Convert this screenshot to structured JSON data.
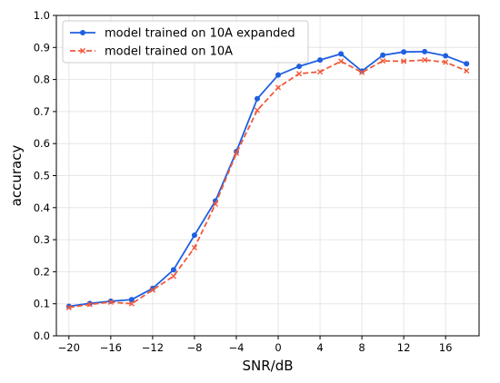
{
  "chart_data": {
    "type": "line",
    "title": "",
    "xlabel": "SNR/dB",
    "ylabel": "accuracy",
    "xlim": [
      -21.2,
      19.2
    ],
    "ylim": [
      0.0,
      1.0
    ],
    "grid": true,
    "legend_position": "top-left",
    "xticks": [
      -20,
      -16,
      -12,
      -8,
      -4,
      0,
      4,
      8,
      12,
      16
    ],
    "xtick_labels": [
      "−20",
      "−16",
      "−12",
      "−8",
      "−4",
      "0",
      "4",
      "8",
      "12",
      "16"
    ],
    "yticks": [
      0.0,
      0.1,
      0.2,
      0.3,
      0.4,
      0.5,
      0.6,
      0.7,
      0.8,
      0.9,
      1.0
    ],
    "ytick_labels": [
      "0.0",
      "0.1",
      "0.2",
      "0.3",
      "0.4",
      "0.5",
      "0.6",
      "0.7",
      "0.8",
      "0.9",
      "1.0"
    ],
    "x": [
      -20,
      -18,
      -16,
      -14,
      -12,
      -10,
      -8,
      -6,
      -4,
      -2,
      0,
      2,
      4,
      6,
      8,
      10,
      12,
      14,
      16,
      18
    ],
    "series": [
      {
        "name": "model trained on 10A expanded",
        "color": "#1f5fe0",
        "linestyle": "solid",
        "marker": "circle",
        "values": [
          0.092,
          0.101,
          0.108,
          0.113,
          0.148,
          0.206,
          0.314,
          0.421,
          0.575,
          0.74,
          0.814,
          0.841,
          0.861,
          0.88,
          0.826,
          0.876,
          0.886,
          0.887,
          0.874,
          0.849
        ]
      },
      {
        "name": "model trained on 10A",
        "color": "#f05a3c",
        "linestyle": "dashed",
        "marker": "x",
        "values": [
          0.088,
          0.098,
          0.105,
          0.1,
          0.143,
          0.186,
          0.275,
          0.411,
          0.57,
          0.704,
          0.775,
          0.818,
          0.824,
          0.857,
          0.822,
          0.858,
          0.857,
          0.861,
          0.854,
          0.827
        ]
      }
    ]
  }
}
